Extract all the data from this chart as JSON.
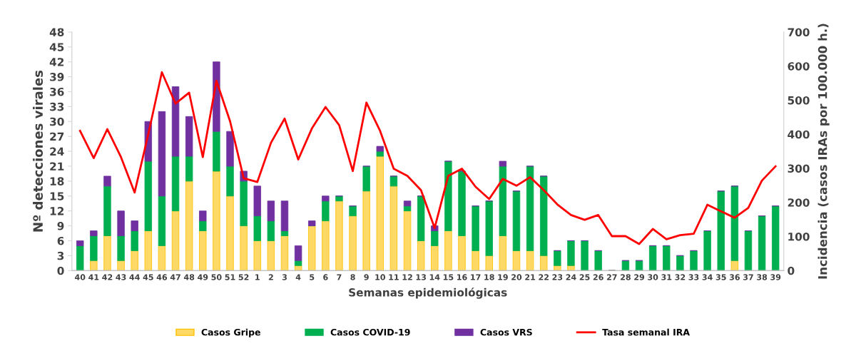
{
  "chart_data": {
    "type": "bar",
    "stacked": true,
    "xlabel": "Semanas epidemiológicas",
    "ylabel": "Nº detecciones virales",
    "y2label": "Incidencia (casos IRAs por 100.000 h.)",
    "categories": [
      "40",
      "41",
      "42",
      "43",
      "44",
      "45",
      "46",
      "47",
      "48",
      "49",
      "50",
      "51",
      "52",
      "1",
      "2",
      "3",
      "4",
      "5",
      "6",
      "7",
      "8",
      "9",
      "10",
      "11",
      "12",
      "13",
      "14",
      "15",
      "16",
      "17",
      "18",
      "19",
      "20",
      "21",
      "22",
      "23",
      "24",
      "25",
      "26",
      "27",
      "28",
      "29",
      "30",
      "31",
      "32",
      "33",
      "34",
      "35",
      "36",
      "37",
      "38",
      "39"
    ],
    "series": [
      {
        "name": "Casos Gripe",
        "color": "#ffd966",
        "values": [
          0,
          2,
          7,
          2,
          4,
          8,
          5,
          12,
          18,
          8,
          20,
          15,
          9,
          6,
          6,
          7,
          1,
          9,
          10,
          14,
          11,
          16,
          23,
          17,
          12,
          6,
          5,
          8,
          7,
          4,
          3,
          7,
          4,
          4,
          3,
          1,
          1,
          0,
          0,
          0,
          0,
          0,
          0,
          0,
          0,
          0,
          0,
          0,
          2,
          0,
          0,
          0
        ]
      },
      {
        "name": "Casos COVID-19",
        "color": "#00b050",
        "values": [
          5,
          5,
          10,
          5,
          4,
          14,
          10,
          11,
          5,
          2,
          8,
          6,
          9,
          5,
          4,
          1,
          1,
          0,
          4,
          1,
          2,
          5,
          1,
          2,
          1,
          9,
          3,
          14,
          13,
          9,
          11,
          14,
          12,
          17,
          16,
          3,
          5,
          6,
          4,
          0,
          2,
          2,
          5,
          5,
          3,
          4,
          8,
          16,
          15,
          8,
          11,
          13
        ]
      },
      {
        "name": "Casos VRS",
        "color": "#7030a0",
        "values": [
          1,
          1,
          2,
          5,
          2,
          8,
          17,
          14,
          8,
          2,
          14,
          7,
          2,
          6,
          4,
          6,
          3,
          1,
          1,
          0,
          0,
          0,
          1,
          0,
          1,
          0,
          1,
          0,
          0,
          0,
          0,
          1,
          0,
          0,
          0,
          0,
          0,
          0,
          0,
          0,
          0,
          0,
          0,
          0,
          0,
          0,
          0,
          0,
          0,
          0,
          0,
          0
        ]
      },
      {
        "name": "Tasa semanal IRA",
        "type": "line",
        "axis": "y2",
        "color": "#ff0000",
        "values": [
          410,
          330,
          415,
          333,
          229,
          400,
          582,
          490,
          522,
          333,
          557,
          438,
          271,
          260,
          375,
          446,
          326,
          417,
          480,
          427,
          292,
          493,
          410,
          299,
          278,
          236,
          125,
          278,
          299,
          246,
          210,
          269,
          249,
          274,
          236,
          194,
          163,
          149,
          163,
          101,
          101,
          78,
          122,
          92,
          104,
          108,
          193,
          174,
          155,
          184,
          264,
          306
        ]
      }
    ],
    "ylim": [
      0,
      48
    ],
    "yticks": [
      0,
      3,
      6,
      9,
      12,
      15,
      18,
      21,
      24,
      27,
      30,
      33,
      36,
      39,
      42,
      45,
      48
    ],
    "y2lim": [
      0,
      700
    ],
    "y2ticks": [
      0,
      100,
      200,
      300,
      400,
      500,
      600,
      700
    ],
    "grid": false,
    "legend": "bottom",
    "marker": "none",
    "line_style": "solid"
  }
}
